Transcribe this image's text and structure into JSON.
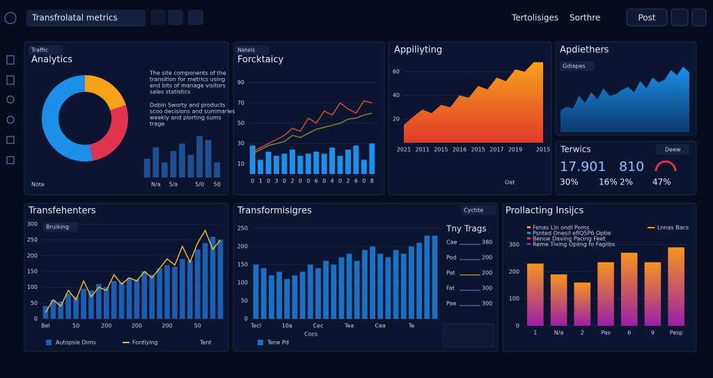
{
  "header": {
    "search": "Transfrolatal metrics",
    "links": [
      "Tertolisiges",
      "Sorthre"
    ],
    "button": "Post"
  },
  "kpis": {
    "title": "Terwics",
    "button": "Deew",
    "items": [
      "17.901",
      "810",
      "30%",
      "16%",
      "2%",
      "47%"
    ]
  },
  "side_list": {
    "title": "Tny Trags",
    "items": [
      {
        "label": "Cae",
        "value": 380
      },
      {
        "label": "Pod",
        "value": 200
      },
      {
        "label": "Pat",
        "value": 200
      },
      {
        "label": "Fat",
        "value": 300
      },
      {
        "label": "Pae",
        "value": 300
      }
    ]
  },
  "chart_data": [
    {
      "type": "donut",
      "label": "Traffic",
      "title": "Analytics",
      "values": [
        20,
        27,
        53
      ],
      "colors": [
        "#f7a21b",
        "#e0344f",
        "#1e8fe8"
      ],
      "notes": [
        "The site components of the",
        "transition for metrics using",
        "end bits of manage visitors",
        "sales statistics",
        "Dobin Sworty and products",
        "scoo decisions and summaries",
        "weekly and plorting sums",
        "trage"
      ],
      "footer": "Note"
    },
    {
      "type": "bar",
      "categories": [
        null,
        "N/a",
        null,
        "5/a",
        null,
        null,
        "5/0",
        null,
        "50"
      ],
      "ylim": [
        0,
        24
      ],
      "series": [
        {
          "color": "#1f4f8f",
          "values": [
            10,
            16,
            8,
            14,
            18,
            12,
            22,
            20,
            8
          ]
        }
      ]
    },
    {
      "type": "bar",
      "label": "Netels",
      "title": "Forcktaicy",
      "categories": [
        "0",
        "1",
        "0",
        "3",
        "0",
        "2",
        "0",
        "0",
        "6",
        "0",
        "4",
        "0",
        "2",
        "6",
        "0",
        "8"
      ],
      "ylim": [
        0,
        100
      ],
      "yticks": [
        10,
        30,
        50,
        70,
        90
      ],
      "series": [
        {
          "color": "#1e8fe8",
          "values": [
            28,
            14,
            22,
            18,
            20,
            24,
            18,
            20,
            22,
            20,
            26,
            18,
            24,
            28,
            14,
            30
          ]
        },
        {
          "type": "line",
          "color": "#e0482f",
          "values": [
            22,
            26,
            30,
            34,
            38,
            45,
            42,
            55,
            50,
            62,
            58,
            70,
            64,
            60,
            72,
            70
          ]
        },
        {
          "type": "line",
          "color": "#7e8a2a",
          "values": [
            20,
            24,
            28,
            30,
            32,
            38,
            36,
            40,
            44,
            46,
            48,
            50,
            54,
            55,
            58,
            60
          ]
        }
      ]
    },
    {
      "type": "area",
      "title": "Appiliyting",
      "button": "Oat",
      "categories": [
        "2021",
        null,
        "2011",
        null,
        "2015",
        null,
        "2016",
        null,
        "2015",
        null,
        "2017",
        null,
        "2019",
        null,
        null,
        "2015"
      ],
      "ylim": [
        0,
        70
      ],
      "yticks": [
        20,
        40,
        60
      ],
      "series": [
        {
          "color": [
            "#f7a21b",
            "#e23a2c"
          ],
          "values": [
            15,
            22,
            28,
            25,
            32,
            30,
            40,
            38,
            48,
            45,
            55,
            52,
            62,
            60,
            68,
            68
          ]
        }
      ]
    },
    {
      "type": "area",
      "title": "Apdiethers",
      "label": "Gdiapes",
      "ylim": [
        0,
        100
      ],
      "series": [
        {
          "color": [
            "#1e8fe8",
            "#0b3a6e"
          ],
          "values": [
            30,
            35,
            32,
            50,
            40,
            55,
            45,
            60,
            50,
            52,
            58,
            62,
            55,
            70,
            60,
            75,
            68,
            72,
            85,
            78,
            90,
            82
          ]
        }
      ]
    },
    {
      "type": "bar",
      "title": "Transfehenters",
      "label": "Bruiking",
      "button": "Tent",
      "categories": [
        "Bel",
        null,
        null,
        null,
        "50",
        null,
        null,
        null,
        "200",
        null,
        null,
        null,
        "200",
        null,
        null,
        null,
        "200",
        null,
        null,
        null,
        "50",
        null,
        null,
        null
      ],
      "ylim": [
        0,
        300
      ],
      "yticks": [
        0,
        50,
        100,
        150,
        200,
        250,
        300
      ],
      "series": [
        {
          "name": "Autopsie Dims",
          "color": "#1d5fae",
          "values": [
            40,
            60,
            55,
            80,
            70,
            95,
            90,
            110,
            100,
            120,
            115,
            130,
            125,
            150,
            140,
            160,
            170,
            165,
            190,
            185,
            220,
            240,
            260,
            250
          ]
        },
        {
          "name": "Fontlying",
          "type": "line",
          "color": "#f2b632",
          "values": [
            20,
            60,
            40,
            90,
            60,
            120,
            70,
            100,
            90,
            140,
            110,
            130,
            120,
            150,
            130,
            160,
            190,
            170,
            230,
            180,
            240,
            280,
            220,
            250
          ]
        }
      ]
    },
    {
      "type": "bar",
      "title": "Transformisigres",
      "label": "Cyctite",
      "button": "Cocs",
      "categories": [
        "Tecl",
        null,
        null,
        null,
        "10a",
        null,
        null,
        null,
        "Cec",
        null,
        null,
        null,
        "Tea",
        null,
        null,
        null,
        "Cea",
        null,
        null,
        null,
        "Te",
        null,
        null,
        null
      ],
      "ylim": [
        0,
        250
      ],
      "yticks": [
        0,
        50,
        100,
        150,
        200,
        250
      ],
      "series": [
        {
          "name": "Tene Pd",
          "color": "#1d6fc0",
          "values": [
            150,
            140,
            120,
            130,
            110,
            120,
            130,
            150,
            140,
            160,
            150,
            170,
            180,
            160,
            190,
            200,
            180,
            170,
            190,
            180,
            200,
            210,
            230,
            230
          ]
        }
      ]
    },
    {
      "type": "bar",
      "title": "Prollacting Insijcs",
      "notes": [
        "Fenas Lin ondl Poms",
        "Psnted Onesil eflQ5P6 Optie",
        "Benue Daving Pacing Feet",
        "Reme Tiving Opiing fo Fagilbs"
      ],
      "categories": [
        "1",
        "N/a",
        "2",
        "Pas",
        "6",
        "9",
        "Pesp"
      ],
      "ylim": [
        0,
        350
      ],
      "yticks": [
        0,
        100,
        200,
        300
      ],
      "series": [
        {
          "name": "Lnnas Bacs",
          "color": [
            "#f7941d",
            "#9b1fa8"
          ],
          "values": [
            230,
            190,
            160,
            235,
            270,
            235,
            290
          ]
        }
      ]
    }
  ]
}
